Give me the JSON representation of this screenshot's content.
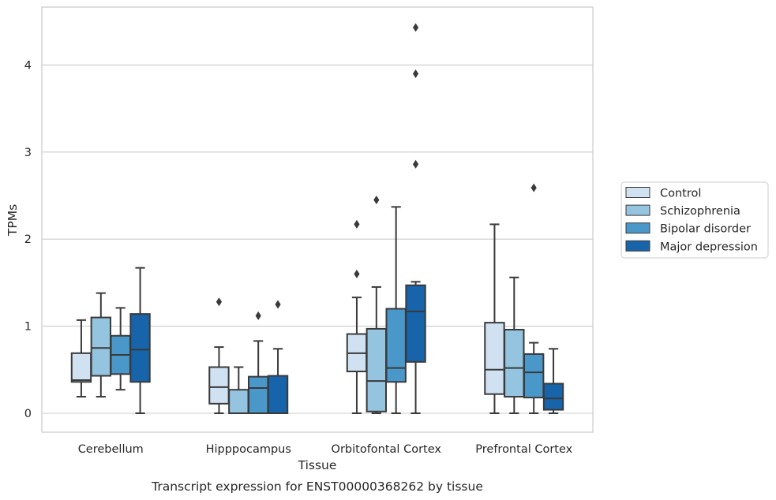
{
  "caption": "Transcript expression for ENST00000368262 by tissue",
  "chart_data": {
    "type": "box",
    "xlabel": "Tissue",
    "ylabel": "TPMs",
    "ylim": [
      -0.22,
      4.65
    ],
    "yticks": [
      0,
      1,
      2,
      3,
      4
    ],
    "grid": true,
    "legend_position": "right",
    "categories": [
      "Cerebellum",
      "Hipppocampus",
      "Orbitofontal Cortex",
      "Prefrontal Cortex"
    ],
    "series": [
      {
        "name": "Control",
        "color": "#d0e1f2",
        "boxes": [
          {
            "whislo": 0.19,
            "q1": 0.36,
            "med": 0.38,
            "q3": 0.69,
            "whishi": 1.07,
            "fliers": []
          },
          {
            "whislo": 0.0,
            "q1": 0.11,
            "med": 0.3,
            "q3": 0.53,
            "whishi": 0.76,
            "fliers": [
              1.28
            ]
          },
          {
            "whislo": 0.0,
            "q1": 0.48,
            "med": 0.69,
            "q3": 0.91,
            "whishi": 1.33,
            "fliers": [
              1.6,
              2.17
            ]
          },
          {
            "whislo": 0.0,
            "q1": 0.22,
            "med": 0.5,
            "q3": 1.04,
            "whishi": 2.17,
            "fliers": []
          }
        ]
      },
      {
        "name": "Schizophrenia",
        "color": "#94c4df",
        "boxes": [
          {
            "whislo": 0.19,
            "q1": 0.43,
            "med": 0.75,
            "q3": 1.1,
            "whishi": 1.38,
            "fliers": []
          },
          {
            "whislo": 0.0,
            "q1": 0.0,
            "med": 0.0,
            "q3": 0.27,
            "whishi": 0.53,
            "fliers": []
          },
          {
            "whislo": 0.0,
            "q1": 0.02,
            "med": 0.37,
            "q3": 0.97,
            "whishi": 1.45,
            "fliers": [
              2.45
            ]
          },
          {
            "whislo": 0.0,
            "q1": 0.19,
            "med": 0.52,
            "q3": 0.96,
            "whishi": 1.56,
            "fliers": []
          }
        ]
      },
      {
        "name": "Bipolar disorder",
        "color": "#4a98c9",
        "boxes": [
          {
            "whislo": 0.27,
            "q1": 0.45,
            "med": 0.67,
            "q3": 0.89,
            "whishi": 1.21,
            "fliers": []
          },
          {
            "whislo": 0.0,
            "q1": 0.0,
            "med": 0.29,
            "q3": 0.42,
            "whishi": 0.83,
            "fliers": [
              1.12
            ]
          },
          {
            "whislo": 0.0,
            "q1": 0.36,
            "med": 0.52,
            "q3": 1.2,
            "whishi": 2.37,
            "fliers": []
          },
          {
            "whislo": 0.0,
            "q1": 0.18,
            "med": 0.47,
            "q3": 0.68,
            "whishi": 0.81,
            "fliers": [
              2.59
            ]
          }
        ]
      },
      {
        "name": "Major depression",
        "color": "#1764ab",
        "boxes": [
          {
            "whislo": 0.0,
            "q1": 0.36,
            "med": 0.73,
            "q3": 1.14,
            "whishi": 1.67,
            "fliers": []
          },
          {
            "whislo": 0.0,
            "q1": 0.0,
            "med": 0.0,
            "q3": 0.43,
            "whishi": 0.74,
            "fliers": [
              1.25
            ]
          },
          {
            "whislo": 0.0,
            "q1": 0.59,
            "med": 1.17,
            "q3": 1.47,
            "whishi": 1.51,
            "fliers": [
              2.86,
              3.9,
              4.43
            ]
          },
          {
            "whislo": 0.0,
            "q1": 0.04,
            "med": 0.17,
            "q3": 0.34,
            "whishi": 0.74,
            "fliers": []
          }
        ]
      }
    ]
  }
}
